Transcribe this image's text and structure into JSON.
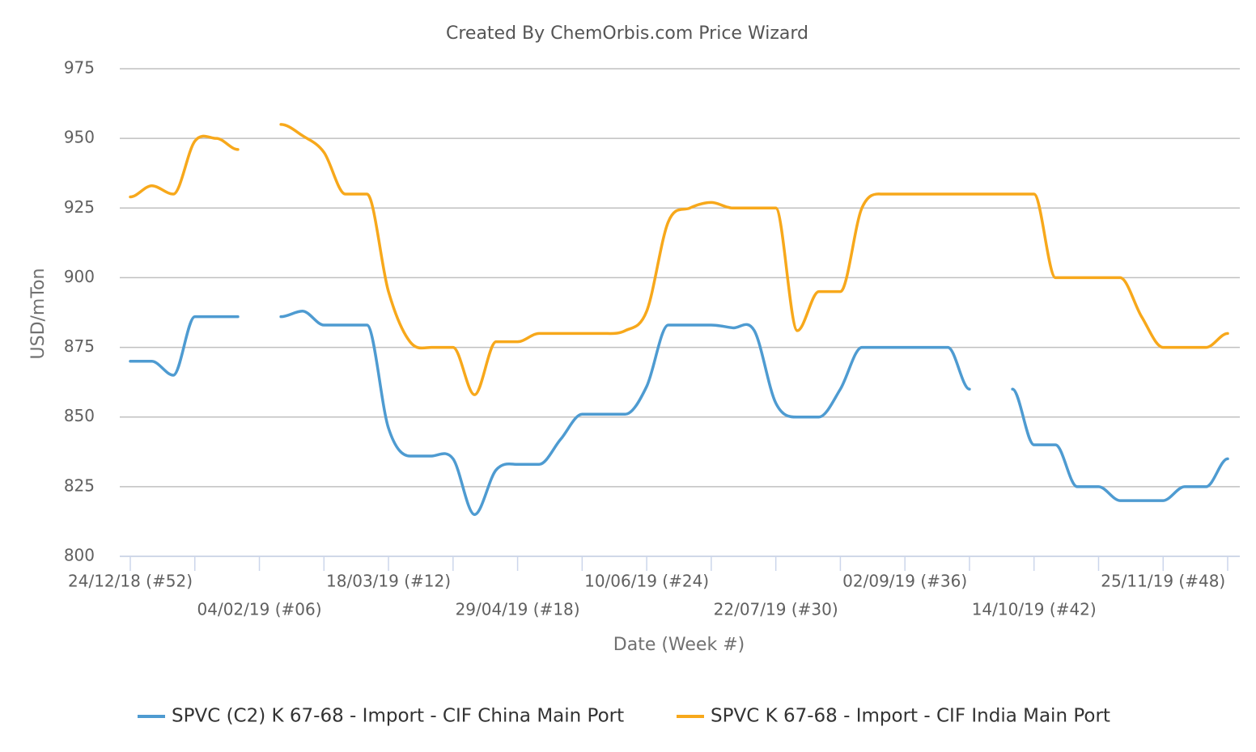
{
  "chart_data": {
    "type": "line",
    "title": "Created By ChemOrbis.com Price Wizard",
    "x_label": "Date (Week #)",
    "y_label": "USD/mTon",
    "categories": [
      "24/12/18 (#52)",
      null,
      null,
      null,
      null,
      null,
      "04/02/19 (#06)",
      null,
      null,
      null,
      null,
      null,
      "18/03/19 (#12)",
      null,
      null,
      null,
      null,
      null,
      "29/04/19 (#18)",
      null,
      null,
      null,
      null,
      null,
      "10/06/19 (#24)",
      null,
      null,
      null,
      null,
      null,
      "22/07/19 (#30)",
      null,
      null,
      null,
      null,
      null,
      "02/09/19 (#36)",
      null,
      null,
      null,
      null,
      null,
      "14/10/19 (#42)",
      null,
      null,
      null,
      null,
      null,
      "25/11/19 (#48)",
      null,
      null,
      null
    ],
    "series": [
      {
        "name": "SPVC (C2) K 67-68 - Import - CIF China Main Port",
        "color": "#4e9bd1",
        "values": [
          870,
          870,
          865,
          886,
          886,
          886,
          null,
          886,
          888,
          883,
          883,
          883,
          846,
          836,
          836,
          835,
          815,
          831,
          833,
          833,
          842,
          851,
          851,
          851,
          861,
          883,
          883,
          883,
          882,
          881,
          855,
          850,
          850,
          860,
          875,
          875,
          875,
          875,
          875,
          860,
          null,
          860,
          840,
          840,
          825,
          825,
          820,
          820,
          820,
          825,
          825,
          835
        ]
      },
      {
        "name": "SPVC K 67-68 - Import - CIF India Main Port",
        "color": "#f7a81b",
        "values": [
          929,
          933,
          930,
          949,
          950,
          946,
          null,
          955,
          951,
          945,
          930,
          930,
          895,
          877,
          875,
          875,
          858,
          877,
          877,
          880,
          880,
          880,
          880,
          881,
          888,
          920,
          925,
          927,
          925,
          925,
          925,
          881,
          895,
          895,
          925,
          930,
          930,
          930,
          930,
          930,
          930,
          930,
          930,
          900,
          900,
          900,
          900,
          886,
          875,
          875,
          875,
          880
        ]
      }
    ],
    "ylim": [
      800,
      975
    ],
    "yticks": [
      800,
      825,
      850,
      875,
      900,
      925,
      950,
      975
    ],
    "grid": true,
    "legend": "bottom"
  }
}
